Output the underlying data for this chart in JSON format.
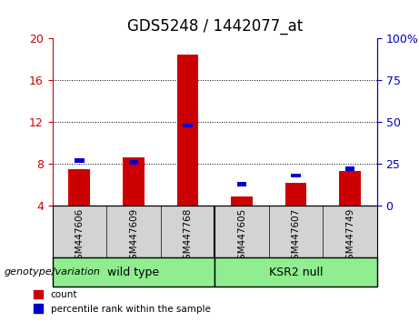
{
  "title": "GDS5248 / 1442077_at",
  "samples": [
    "GSM447606",
    "GSM447609",
    "GSM447768",
    "GSM447605",
    "GSM447607",
    "GSM447749"
  ],
  "groups": [
    "wild type",
    "wild type",
    "wild type",
    "KSR2 null",
    "KSR2 null",
    "KSR2 null"
  ],
  "group_labels": [
    "wild type",
    "KSR2 null"
  ],
  "group_colors": [
    "#90ee90",
    "#90ee90"
  ],
  "count_values": [
    7.5,
    8.6,
    18.5,
    4.9,
    6.2,
    7.3
  ],
  "percentile_values": [
    27,
    26,
    48,
    13,
    18,
    22
  ],
  "bar_color_red": "#cc0000",
  "bar_color_blue": "#0000cc",
  "ylim_left": [
    4,
    20
  ],
  "ylim_right": [
    0,
    100
  ],
  "yticks_left": [
    4,
    8,
    12,
    16,
    20
  ],
  "yticks_right": [
    0,
    25,
    50,
    75,
    100
  ],
  "bar_width": 0.4,
  "blue_bar_width": 0.18,
  "baseline": 4,
  "background_color": "#ffffff",
  "plot_bg": "#ffffff",
  "label_area_color": "#d3d3d3",
  "genotype_label": "genotype/variation",
  "legend_count": "count",
  "legend_percentile": "percentile rank within the sample",
  "title_fontsize": 12,
  "tick_fontsize": 9,
  "label_fontsize": 9
}
